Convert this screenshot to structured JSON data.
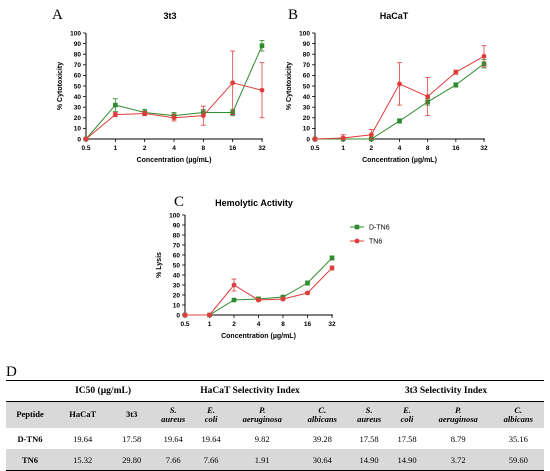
{
  "panel_letters": {
    "a": "A",
    "b": "B",
    "c": "C",
    "d": "D"
  },
  "chart_data": [
    {
      "type": "line",
      "title": "3t3",
      "xlabel": "Concentration (µg/mL)",
      "ylabel": "% Cytotoxicity",
      "x": [
        "0.5",
        "1",
        "2",
        "4",
        "8",
        "16",
        "32"
      ],
      "ylim": [
        0,
        100
      ],
      "yticks": [
        "0",
        "10",
        "20",
        "30",
        "40",
        "50",
        "60",
        "70",
        "80",
        "90",
        "100"
      ],
      "series": [
        {
          "color": "#2e8b2e",
          "marker": "square",
          "values": [
            0,
            32,
            25,
            22,
            25,
            25,
            88
          ],
          "err": [
            0,
            6,
            3,
            3,
            3,
            3,
            5
          ]
        },
        {
          "color": "#e03c3c",
          "marker": "circle",
          "values": [
            0,
            23,
            24,
            20,
            22,
            53,
            46
          ],
          "err": [
            0,
            2,
            2,
            3,
            9,
            30,
            26
          ]
        }
      ]
    },
    {
      "type": "line",
      "title": "HaCaT",
      "xlabel": "Concentration (µg/mL)",
      "ylabel": "% Cytotoxicity",
      "x": [
        "0.5",
        "1",
        "2",
        "4",
        "8",
        "16",
        "32"
      ],
      "ylim": [
        0,
        100
      ],
      "yticks": [
        "0",
        "10",
        "20",
        "30",
        "40",
        "50",
        "60",
        "70",
        "80",
        "90",
        "100"
      ],
      "series": [
        {
          "color": "#2e8b2e",
          "marker": "square",
          "values": [
            0,
            0,
            0,
            17,
            35,
            51,
            71
          ],
          "err": [
            0,
            1,
            1,
            2,
            3,
            2,
            4
          ]
        },
        {
          "color": "#e03c3c",
          "marker": "circle",
          "values": [
            0,
            1,
            4,
            52,
            40,
            63,
            78
          ],
          "err": [
            0,
            3,
            5,
            20,
            18,
            2,
            10
          ]
        }
      ]
    },
    {
      "type": "line",
      "title": "Hemolytic Activity",
      "xlabel": "Concentration (µg/mL)",
      "ylabel": "% Lysis",
      "x": [
        "0.5",
        "1",
        "2",
        "4",
        "8",
        "16",
        "32"
      ],
      "ylim": [
        0,
        100
      ],
      "yticks": [
        "0",
        "10",
        "20",
        "30",
        "40",
        "50",
        "60",
        "70",
        "80",
        "90",
        "100"
      ],
      "legend_position": "top-right",
      "series": [
        {
          "name": "D-TN6",
          "color": "#2e8b2e",
          "marker": "square",
          "values": [
            0,
            0,
            15,
            16,
            18,
            32,
            57
          ],
          "err": [
            0,
            0,
            1,
            2,
            1,
            2,
            2
          ]
        },
        {
          "name": "TN6",
          "color": "#e03c3c",
          "marker": "circle",
          "values": [
            0,
            0,
            30,
            15,
            16,
            22,
            47
          ],
          "err": [
            0,
            0,
            6,
            1,
            1,
            1,
            2
          ]
        }
      ]
    }
  ],
  "table": {
    "group_headers": [
      "IC50 (µg/mL)",
      "HaCaT Selectivity Index",
      "3t3 Selectivity Index"
    ],
    "columns": [
      {
        "line1": "Peptide",
        "line2": "",
        "italic": false
      },
      {
        "line1": "HaCaT",
        "line2": "",
        "italic": false
      },
      {
        "line1": "3t3",
        "line2": "",
        "italic": false
      },
      {
        "line1": "S.",
        "line2": "aureus",
        "italic": true
      },
      {
        "line1": "E.",
        "line2": "coli",
        "italic": true
      },
      {
        "line1": "P.",
        "line2": "aeruginosa",
        "italic": true
      },
      {
        "line1": "C.",
        "line2": "albicans",
        "italic": true
      },
      {
        "line1": "S.",
        "line2": "aureus",
        "italic": true
      },
      {
        "line1": "E.",
        "line2": "coli",
        "italic": true
      },
      {
        "line1": "P.",
        "line2": "aeruginosa",
        "italic": true
      },
      {
        "line1": "C.",
        "line2": "albicans",
        "italic": true
      }
    ],
    "rows": [
      [
        "D-TN6",
        "19.64",
        "17.58",
        "19.64",
        "19.64",
        "9.82",
        "39.28",
        "17.58",
        "17.58",
        "8.79",
        "35.16"
      ],
      [
        "TN6",
        "15.32",
        "29.80",
        "7.66",
        "7.66",
        "1.91",
        "30.64",
        "14.90",
        "14.90",
        "3.72",
        "59.60"
      ]
    ]
  }
}
